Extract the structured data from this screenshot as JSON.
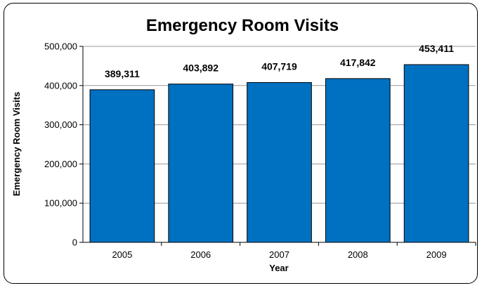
{
  "chart_data": {
    "type": "bar",
    "title": "Emergency Room Visits",
    "xlabel": "Year",
    "ylabel": "Emergency Room Visits",
    "categories": [
      "2005",
      "2006",
      "2007",
      "2008",
      "2009"
    ],
    "values": [
      389311,
      403892,
      407719,
      417842,
      453411
    ],
    "data_labels": [
      "389,311",
      "403,892",
      "407,719",
      "417,842",
      "453,411"
    ],
    "ylim": [
      0,
      500000
    ],
    "yticks": [
      0,
      100000,
      200000,
      300000,
      400000,
      500000
    ],
    "ytick_labels": [
      "0",
      "100,000",
      "200,000",
      "300,000",
      "400,000",
      "500,000"
    ],
    "grid": true,
    "legend": "none",
    "bar_color": "#0070C0"
  }
}
